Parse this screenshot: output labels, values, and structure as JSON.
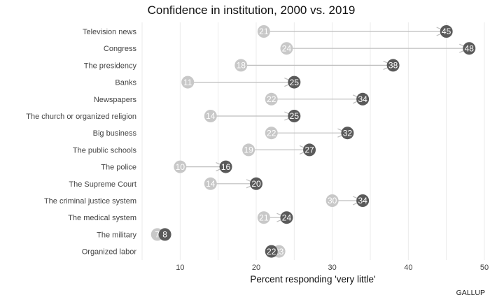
{
  "chart_data": {
    "type": "dumbbell-arrow",
    "title": "Confidence in institution, 2000 vs. 2019",
    "xlabel": "Percent responding 'very little'",
    "ylabel": "",
    "xlim": [
      5,
      50
    ],
    "xticks": [
      10,
      20,
      30,
      40,
      50
    ],
    "grid": true,
    "source": "GALLUP",
    "series": [
      {
        "name": "2000",
        "color": "#c8c8c8"
      },
      {
        "name": "2019",
        "color": "#5a5a5a"
      }
    ],
    "arrow_color": "#bdbdbd",
    "categories": [
      "Television news",
      "Congress",
      "The presidency",
      "Banks",
      "Newspapers",
      "The church or organized religion",
      "Big business",
      "The public schools",
      "The police",
      "The Supreme Court",
      "The criminal justice system",
      "The medical system",
      "The military",
      "Organized labor"
    ],
    "values_2000": [
      21,
      24,
      18,
      11,
      22,
      14,
      22,
      19,
      10,
      14,
      30,
      21,
      7,
      23
    ],
    "values_2019": [
      45,
      48,
      38,
      25,
      34,
      25,
      32,
      27,
      16,
      20,
      34,
      24,
      8,
      22
    ]
  }
}
